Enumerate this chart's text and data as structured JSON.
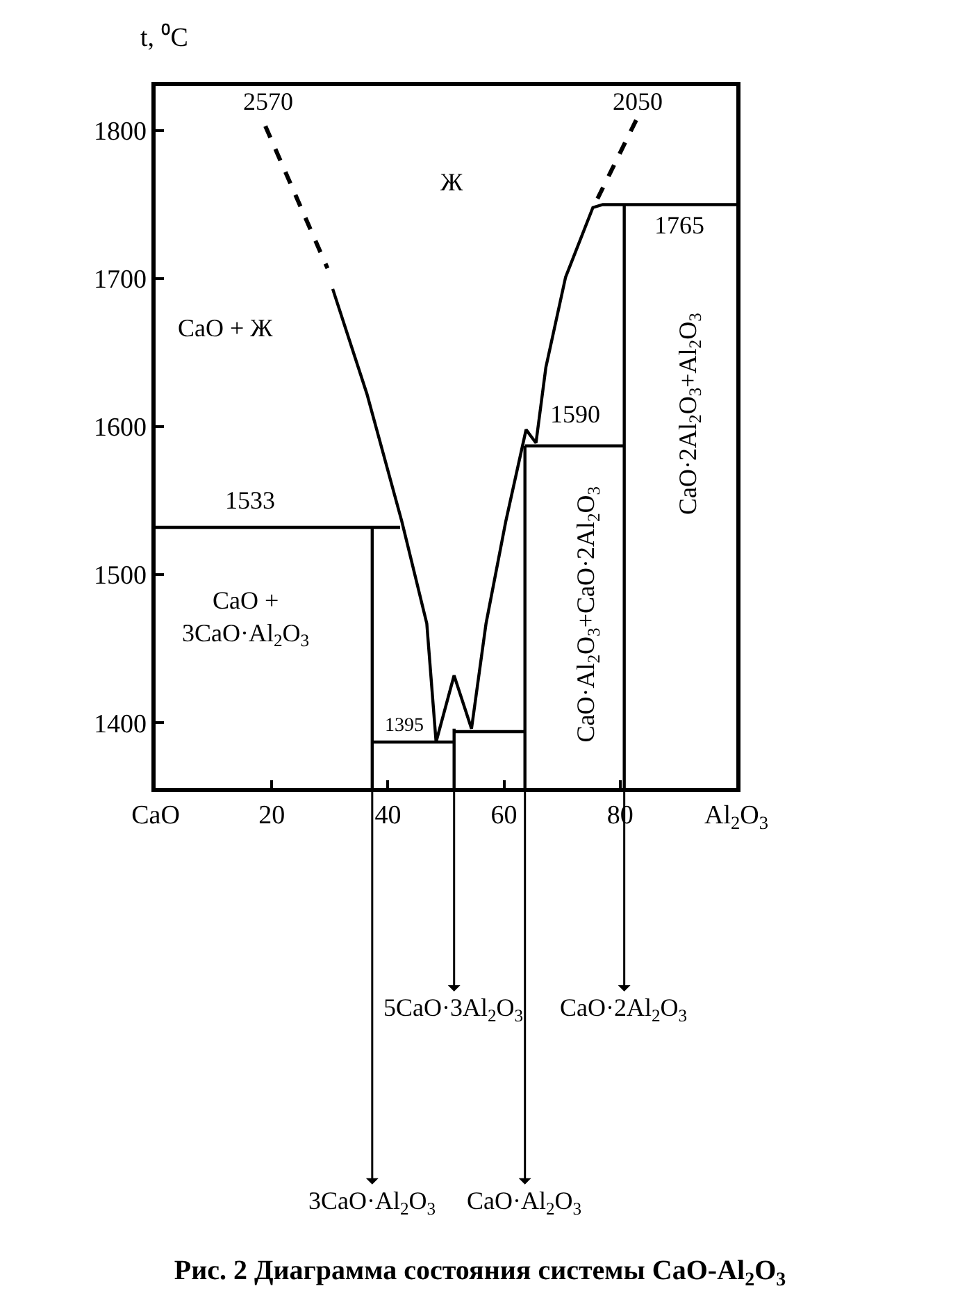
{
  "chart_data": {
    "type": "line",
    "title": "Рис. 2 Диаграмма состояния системы CaO-Al$_{2}$O$_{3}$",
    "ylabel": "t, ⁰C",
    "xlim": [
      0,
      100
    ],
    "ylim": [
      1356,
      1830
    ],
    "xticks": [
      {
        "value": 0,
        "label": "CaO"
      },
      20,
      40,
      60,
      80,
      {
        "value": 100,
        "label": "Al$_{2}$O$_{3}$"
      }
    ],
    "yticks": [
      1400,
      1500,
      1600,
      1700,
      1800
    ],
    "marker": "none",
    "series": [
      {
        "color": "#000000",
        "line_style": "dashed",
        "x": [
          18.9,
          29.6
        ],
        "values": [
          1803,
          1707
        ]
      },
      {
        "color": "#000000",
        "line_style": "solid",
        "x": [
          30.5,
          36.4,
          42.4,
          46.7,
          48.3,
          51.4,
          54.4,
          56.9,
          60.3,
          63.8,
          65.5,
          67.2,
          70.6,
          75.3,
          77,
          100
        ],
        "values": [
          1693,
          1622,
          1536,
          1467,
          1387,
          1432,
          1396,
          1467,
          1536,
          1598,
          1589,
          1640,
          1701,
          1748,
          1750,
          1750
        ]
      },
      {
        "color": "#000000",
        "line_style": "dashed",
        "x": [
          76.1,
          83
        ],
        "values": [
          1754,
          1809
        ]
      },
      {
        "color": "#000000",
        "line_style": "solid",
        "x": [
          0,
          42.1
        ],
        "values": [
          1532,
          1532
        ]
      },
      {
        "color": "#000000",
        "line_style": "solid",
        "x": [
          37.3,
          37.3
        ],
        "values": [
          1356,
          1532
        ]
      },
      {
        "color": "#000000",
        "line_style": "solid",
        "x": [
          37.3,
          51.4
        ],
        "values": [
          1387,
          1387
        ]
      },
      {
        "color": "#000000",
        "line_style": "solid",
        "x": [
          51.4,
          51.4
        ],
        "values": [
          1356,
          1396
        ]
      },
      {
        "color": "#000000",
        "line_style": "solid",
        "x": [
          51.4,
          63.6
        ],
        "values": [
          1394,
          1394
        ]
      },
      {
        "color": "#000000",
        "line_style": "solid",
        "x": [
          63.6,
          63.6
        ],
        "values": [
          1356,
          1587
        ]
      },
      {
        "color": "#000000",
        "line_style": "solid",
        "x": [
          63.6,
          80.7
        ],
        "values": [
          1587,
          1587
        ]
      },
      {
        "color": "#000000",
        "line_style": "solid",
        "x": [
          80.7,
          80.7
        ],
        "values": [
          1356,
          1750
        ]
      }
    ],
    "annotations": [
      "Ж",
      "CaO + Ж",
      "CaO +\n3CaO·Al$_{2}$O$_{3}$",
      "1533",
      "1395",
      "1590",
      "1765",
      "2570",
      "2050",
      "CaO·Al$_{2}$O$_{3}$+CaO·2Al$_{2}$O$_{3}$",
      "CaO·2Al$_{2}$O$_{3}$+Al$_{2}$O$_{3}$",
      "5CaO·3Al$_{2}$O$_{3}$",
      "CaO·2Al$_{2}$O$_{3}$",
      "3CaO·Al$_{2}$O$_{3}$",
      "CaO·Al$_{2}$O$_{3}$"
    ]
  }
}
